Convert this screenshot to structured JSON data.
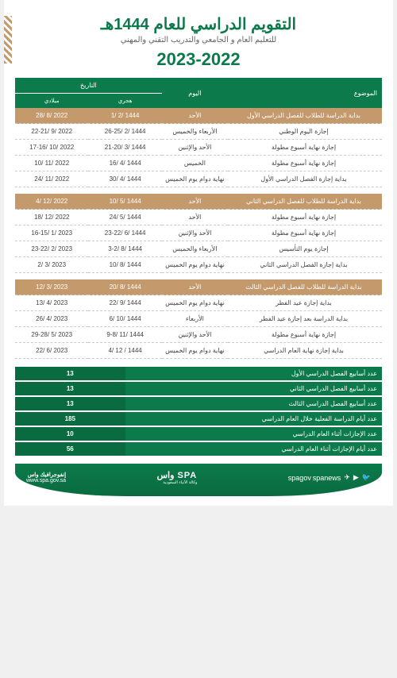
{
  "header": {
    "title": "التقويم الدراسي للعام 1444هـ",
    "subtitle": "للتعليم العام و الجامعي والتدريب التقني والمهني",
    "year": "2023-2022"
  },
  "tableHeaders": {
    "subject": "الموضوع",
    "day": "اليوم",
    "date": "التاريخ",
    "hijri": "هجري",
    "gregorian": "ميلادي"
  },
  "semester1": [
    {
      "hl": true,
      "subject": "بداية الدراسة للطلاب للفصل الدراسي الأول",
      "day": "الأحد",
      "hijri": "1444 /2 /1",
      "greg": "2022 /8 /28"
    },
    {
      "hl": false,
      "subject": "إجازة اليوم الوطني",
      "day": "الأربعاء والخميس",
      "hijri": "1444 /2 /26-25",
      "greg": "2022 /9 /22-21"
    },
    {
      "hl": false,
      "subject": "إجازة نهاية أسبوع مطولة",
      "day": "الأحد والإثنين",
      "hijri": "1444 /3 /21-20",
      "greg": "2022 /10 /17-16"
    },
    {
      "hl": false,
      "subject": "إجازة نهاية أسبوع مطولة",
      "day": "الخميس",
      "hijri": "1444 /4 /16",
      "greg": "2022 /11 /10"
    },
    {
      "hl": false,
      "subject": "بداية إجازة الفصل الدراسي الأول",
      "day": "نهاية دوام يوم الخميس",
      "hijri": "1444 /4 /30",
      "greg": "2022 /11 /24"
    }
  ],
  "semester2": [
    {
      "hl": true,
      "subject": "بداية الدراسة للطلاب للفصل الدراسي الثاني",
      "day": "الأحد",
      "hijri": "1444 /5 /10",
      "greg": "2022 /12 /4"
    },
    {
      "hl": false,
      "subject": "إجازة نهاية أسبوع مطولة",
      "day": "الأحد",
      "hijri": "1444 /5 /24",
      "greg": "2022 /12 /18"
    },
    {
      "hl": false,
      "subject": "إجازة نهاية أسبوع مطولة",
      "day": "الأحد والإثنين",
      "hijri": "1444 /6 /23-22",
      "greg": "2023 /1 /16-15"
    },
    {
      "hl": false,
      "subject": "إجازة يوم التأسيس",
      "day": "الأربعاء والخميس",
      "hijri": "1444 /8 /3-2",
      "greg": "2023 /2 /23-22"
    },
    {
      "hl": false,
      "subject": "بداية إجازة الفصل الدراسي الثاني",
      "day": "نهاية دوام يوم الخميس",
      "hijri": "1444 /8 /10",
      "greg": "2023 /3 /2"
    }
  ],
  "semester3": [
    {
      "hl": true,
      "subject": "بداية الدراسة للطلاب للفصل الدراسي الثالث",
      "day": "الأحد",
      "hijri": "1444 /8 /20",
      "greg": "2023 /3 /12"
    },
    {
      "hl": false,
      "subject": "بداية إجازة عيد الفطر",
      "day": "نهاية دوام يوم الخميس",
      "hijri": "1444 /9 /22",
      "greg": "2023 /4 /13"
    },
    {
      "hl": false,
      "subject": "بداية الدراسة بعد إجازة عيد الفطر",
      "day": "الأربعاء",
      "hijri": "1444 /10 /6",
      "greg": "2023 /4 /26"
    },
    {
      "hl": false,
      "subject": "إجازة نهاية أسبوع مطولة",
      "day": "الأحد والإثنين",
      "hijri": "1444 /11 /9-8",
      "greg": "2023 /5 /29-28"
    },
    {
      "hl": false,
      "subject": "بداية إجازة نهاية العام الدراسي",
      "day": "نهاية دوام يوم الخميس",
      "hijri": "1444 / 12 /4",
      "greg": "2023 /6 /22"
    }
  ],
  "stats": [
    {
      "label": "عدد أسابيع الفصل الدراسي الأول",
      "value": "13"
    },
    {
      "label": "عدد أسابيع الفصل الدراسي الثاني",
      "value": "13"
    },
    {
      "label": "عدد أسابيع الفصل الدراسي الثالث",
      "value": "13"
    },
    {
      "label": "عدد أيام الدراسة الفعلية خلال العام الدراسي",
      "value": "185"
    },
    {
      "label": "عدد الإجازات أثناء العام الدراسي",
      "value": "10"
    },
    {
      "label": "عدد أيام الإجازات أثناء العام الدراسي",
      "value": "56"
    }
  ],
  "footer": {
    "social1": "spagov",
    "social2": "spanews",
    "logo": "SPA واس",
    "agency": "وكالة الأنباء السعودية",
    "brand": "إنفوجرافيك واس",
    "url": "www.spa.gov.sa"
  },
  "colors": {
    "primary": "#0c7a4a",
    "highlight": "#c49a6c",
    "text": "#444444",
    "bg": "#ffffff"
  }
}
